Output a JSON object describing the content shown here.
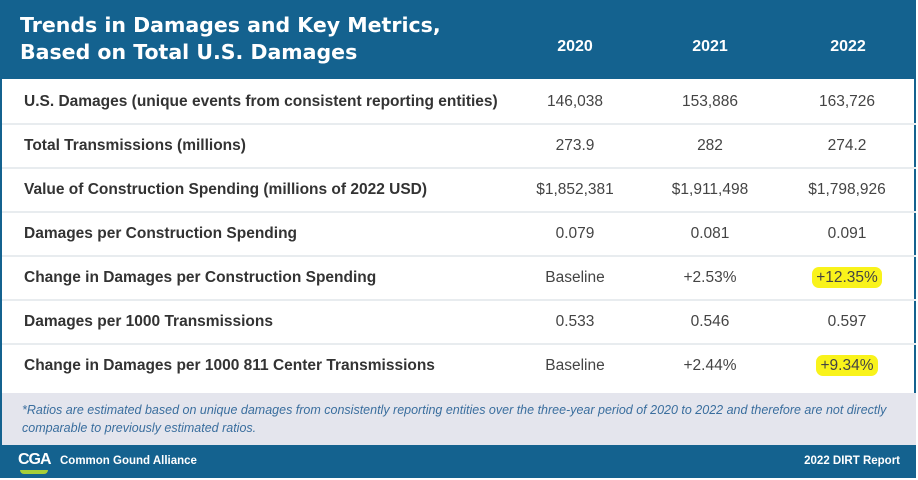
{
  "title_line1": "Trends in Damages and Key Metrics,",
  "title_line2": "Based on Total U.S. Damages",
  "years": [
    "2020",
    "2021",
    "2022"
  ],
  "rows": [
    {
      "label": "U.S. Damages (unique events from consistent reporting entities)",
      "values": [
        "146,038",
        "153,886",
        "163,726"
      ]
    },
    {
      "label": "Total Transmissions (millions)",
      "values": [
        "273.9",
        "282",
        "274.2"
      ]
    },
    {
      "label": "Value of Construction Spending (millions of 2022 USD)",
      "values": [
        "$1,852,381",
        "$1,911,498",
        "$1,798,926"
      ]
    },
    {
      "label": "Damages per Construction Spending",
      "values": [
        "0.079",
        "0.081",
        "0.091"
      ]
    },
    {
      "label": "Change in Damages per Construction Spending",
      "values": [
        "Baseline",
        "+2.53%",
        "+12.35%"
      ],
      "highlight": "2022"
    },
    {
      "label": "Damages per 1000 Transmissions",
      "values": [
        "0.533",
        "0.546",
        "0.597"
      ]
    },
    {
      "label": "Change in Damages per 1000 811 Center Transmissions",
      "values": [
        "Baseline",
        "+2.44%",
        "+9.34%"
      ],
      "highlight": "2022"
    }
  ],
  "footnote": "*Ratios are estimated based on unique damages from consistently reporting entities over the three-year period of 2020 to 2022 and therefore are not directly comparable to previously estimated ratios.",
  "footer": {
    "logo": "CGA",
    "org": "Common Gound Alliance",
    "report": "2022 DIRT Report"
  },
  "colors": {
    "brand": "#14628f",
    "highlight": "#f9f31b",
    "logo_accent": "#a6ce39"
  }
}
